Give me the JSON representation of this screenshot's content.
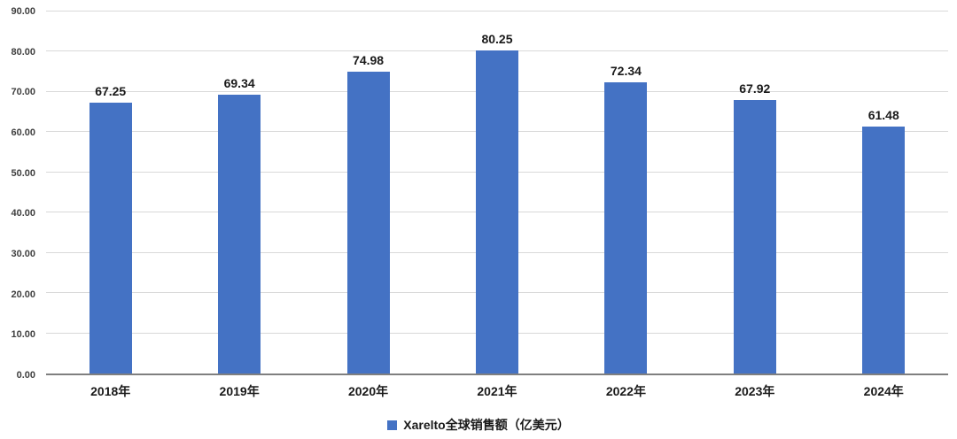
{
  "chart_data": {
    "type": "bar",
    "title": "",
    "categories": [
      "2018年",
      "2019年",
      "2020年",
      "2021年",
      "2022年",
      "2023年",
      "2024年"
    ],
    "values": [
      67.25,
      69.34,
      74.98,
      80.25,
      72.34,
      67.92,
      61.48
    ],
    "value_labels": [
      "67.25",
      "69.34",
      "74.98",
      "80.25",
      "72.34",
      "67.92",
      "61.48"
    ],
    "series_name": "Xarelto全球销售额（亿美元）",
    "xlabel": "",
    "ylabel": "",
    "ylim": [
      0,
      90
    ],
    "y_ticks": [
      "0.00",
      "10.00",
      "20.00",
      "30.00",
      "40.00",
      "50.00",
      "60.00",
      "70.00",
      "80.00",
      "90.00"
    ],
    "grid": "horizontal",
    "legend_position": "bottom",
    "bar_color": "#4472c4",
    "gridline_color": "#d9d9d9"
  }
}
